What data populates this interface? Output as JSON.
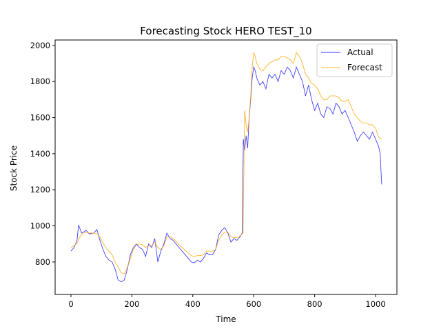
{
  "chart_data": {
    "type": "line",
    "title": "Forecasting Stock HERO TEST_10",
    "xlabel": "Time",
    "ylabel": "Stock Price",
    "xlim": [
      -52,
      1070
    ],
    "ylim": [
      620,
      2030
    ],
    "xticks": [
      0,
      200,
      400,
      600,
      800,
      1000
    ],
    "yticks": [
      800,
      1000,
      1200,
      1400,
      1600,
      1800,
      2000
    ],
    "grid": false,
    "legend_position": "top-right",
    "series": [
      {
        "name": "Actual",
        "color": "#0000ff",
        "points": [
          [
            0,
            860
          ],
          [
            10,
            880
          ],
          [
            20,
            920
          ],
          [
            25,
            1005
          ],
          [
            35,
            960
          ],
          [
            50,
            975
          ],
          [
            60,
            955
          ],
          [
            75,
            960
          ],
          [
            85,
            980
          ],
          [
            95,
            920
          ],
          [
            105,
            870
          ],
          [
            115,
            830
          ],
          [
            125,
            810
          ],
          [
            135,
            800
          ],
          [
            145,
            760
          ],
          [
            155,
            700
          ],
          [
            165,
            690
          ],
          [
            175,
            700
          ],
          [
            185,
            760
          ],
          [
            195,
            840
          ],
          [
            205,
            880
          ],
          [
            215,
            900
          ],
          [
            225,
            880
          ],
          [
            235,
            870
          ],
          [
            245,
            830
          ],
          [
            255,
            900
          ],
          [
            265,
            880
          ],
          [
            275,
            930
          ],
          [
            285,
            800
          ],
          [
            295,
            860
          ],
          [
            305,
            900
          ],
          [
            315,
            960
          ],
          [
            325,
            930
          ],
          [
            335,
            920
          ],
          [
            345,
            900
          ],
          [
            355,
            880
          ],
          [
            365,
            860
          ],
          [
            375,
            840
          ],
          [
            385,
            820
          ],
          [
            395,
            800
          ],
          [
            405,
            795
          ],
          [
            415,
            810
          ],
          [
            425,
            800
          ],
          [
            435,
            820
          ],
          [
            445,
            850
          ],
          [
            455,
            840
          ],
          [
            465,
            840
          ],
          [
            475,
            870
          ],
          [
            485,
            950
          ],
          [
            495,
            975
          ],
          [
            505,
            990
          ],
          [
            515,
            960
          ],
          [
            525,
            910
          ],
          [
            535,
            930
          ],
          [
            545,
            920
          ],
          [
            555,
            940
          ],
          [
            562,
            960
          ],
          [
            566,
            1480
          ],
          [
            570,
            1420
          ],
          [
            575,
            1500
          ],
          [
            580,
            1430
          ],
          [
            585,
            1600
          ],
          [
            590,
            1700
          ],
          [
            595,
            1820
          ],
          [
            600,
            1880
          ],
          [
            605,
            1860
          ],
          [
            610,
            1820
          ],
          [
            620,
            1780
          ],
          [
            630,
            1800
          ],
          [
            640,
            1760
          ],
          [
            650,
            1840
          ],
          [
            660,
            1820
          ],
          [
            670,
            1840
          ],
          [
            680,
            1800
          ],
          [
            690,
            1860
          ],
          [
            700,
            1840
          ],
          [
            710,
            1880
          ],
          [
            720,
            1860
          ],
          [
            730,
            1820
          ],
          [
            740,
            1880
          ],
          [
            750,
            1840
          ],
          [
            760,
            1800
          ],
          [
            770,
            1720
          ],
          [
            780,
            1780
          ],
          [
            790,
            1700
          ],
          [
            800,
            1640
          ],
          [
            810,
            1680
          ],
          [
            820,
            1620
          ],
          [
            830,
            1600
          ],
          [
            840,
            1660
          ],
          [
            850,
            1650
          ],
          [
            860,
            1620
          ],
          [
            870,
            1680
          ],
          [
            880,
            1660
          ],
          [
            890,
            1620
          ],
          [
            900,
            1640
          ],
          [
            910,
            1600
          ],
          [
            920,
            1560
          ],
          [
            930,
            1520
          ],
          [
            940,
            1470
          ],
          [
            950,
            1500
          ],
          [
            960,
            1520
          ],
          [
            970,
            1500
          ],
          [
            980,
            1480
          ],
          [
            990,
            1520
          ],
          [
            1000,
            1480
          ],
          [
            1010,
            1440
          ],
          [
            1015,
            1400
          ],
          [
            1020,
            1230
          ]
        ]
      },
      {
        "name": "Forecast",
        "color": "#ffa500",
        "points": [
          [
            0,
            880
          ],
          [
            10,
            890
          ],
          [
            20,
            905
          ],
          [
            30,
            940
          ],
          [
            40,
            960
          ],
          [
            50,
            965
          ],
          [
            60,
            960
          ],
          [
            75,
            960
          ],
          [
            85,
            955
          ],
          [
            95,
            940
          ],
          [
            105,
            905
          ],
          [
            115,
            880
          ],
          [
            125,
            860
          ],
          [
            135,
            840
          ],
          [
            145,
            800
          ],
          [
            155,
            770
          ],
          [
            165,
            740
          ],
          [
            175,
            735
          ],
          [
            185,
            770
          ],
          [
            195,
            820
          ],
          [
            205,
            870
          ],
          [
            215,
            895
          ],
          [
            225,
            900
          ],
          [
            235,
            895
          ],
          [
            245,
            880
          ],
          [
            255,
            890
          ],
          [
            265,
            890
          ],
          [
            275,
            910
          ],
          [
            285,
            880
          ],
          [
            295,
            870
          ],
          [
            305,
            890
          ],
          [
            315,
            940
          ],
          [
            325,
            940
          ],
          [
            335,
            930
          ],
          [
            345,
            915
          ],
          [
            355,
            895
          ],
          [
            365,
            880
          ],
          [
            375,
            865
          ],
          [
            385,
            850
          ],
          [
            395,
            835
          ],
          [
            405,
            830
          ],
          [
            415,
            835
          ],
          [
            425,
            835
          ],
          [
            435,
            840
          ],
          [
            445,
            860
          ],
          [
            455,
            860
          ],
          [
            465,
            860
          ],
          [
            475,
            870
          ],
          [
            485,
            920
          ],
          [
            495,
            950
          ],
          [
            505,
            965
          ],
          [
            515,
            965
          ],
          [
            525,
            940
          ],
          [
            535,
            935
          ],
          [
            545,
            935
          ],
          [
            555,
            945
          ],
          [
            565,
            960
          ],
          [
            570,
            1640
          ],
          [
            575,
            1560
          ],
          [
            580,
            1520
          ],
          [
            585,
            1600
          ],
          [
            590,
            1720
          ],
          [
            595,
            1880
          ],
          [
            600,
            1960
          ],
          [
            605,
            1940
          ],
          [
            610,
            1900
          ],
          [
            620,
            1870
          ],
          [
            630,
            1860
          ],
          [
            640,
            1880
          ],
          [
            650,
            1900
          ],
          [
            660,
            1910
          ],
          [
            670,
            1920
          ],
          [
            680,
            1920
          ],
          [
            690,
            1940
          ],
          [
            700,
            1940
          ],
          [
            710,
            1930
          ],
          [
            720,
            1920
          ],
          [
            730,
            1900
          ],
          [
            740,
            1960
          ],
          [
            750,
            1940
          ],
          [
            760,
            1900
          ],
          [
            770,
            1840
          ],
          [
            780,
            1820
          ],
          [
            790,
            1790
          ],
          [
            800,
            1780
          ],
          [
            810,
            1760
          ],
          [
            820,
            1720
          ],
          [
            830,
            1700
          ],
          [
            840,
            1700
          ],
          [
            850,
            1720
          ],
          [
            860,
            1720
          ],
          [
            870,
            1720
          ],
          [
            880,
            1710
          ],
          [
            890,
            1690
          ],
          [
            900,
            1690
          ],
          [
            910,
            1700
          ],
          [
            920,
            1660
          ],
          [
            930,
            1620
          ],
          [
            940,
            1600
          ],
          [
            950,
            1580
          ],
          [
            960,
            1570
          ],
          [
            970,
            1570
          ],
          [
            980,
            1560
          ],
          [
            990,
            1560
          ],
          [
            1000,
            1540
          ],
          [
            1010,
            1490
          ],
          [
            1020,
            1480
          ]
        ]
      }
    ]
  }
}
